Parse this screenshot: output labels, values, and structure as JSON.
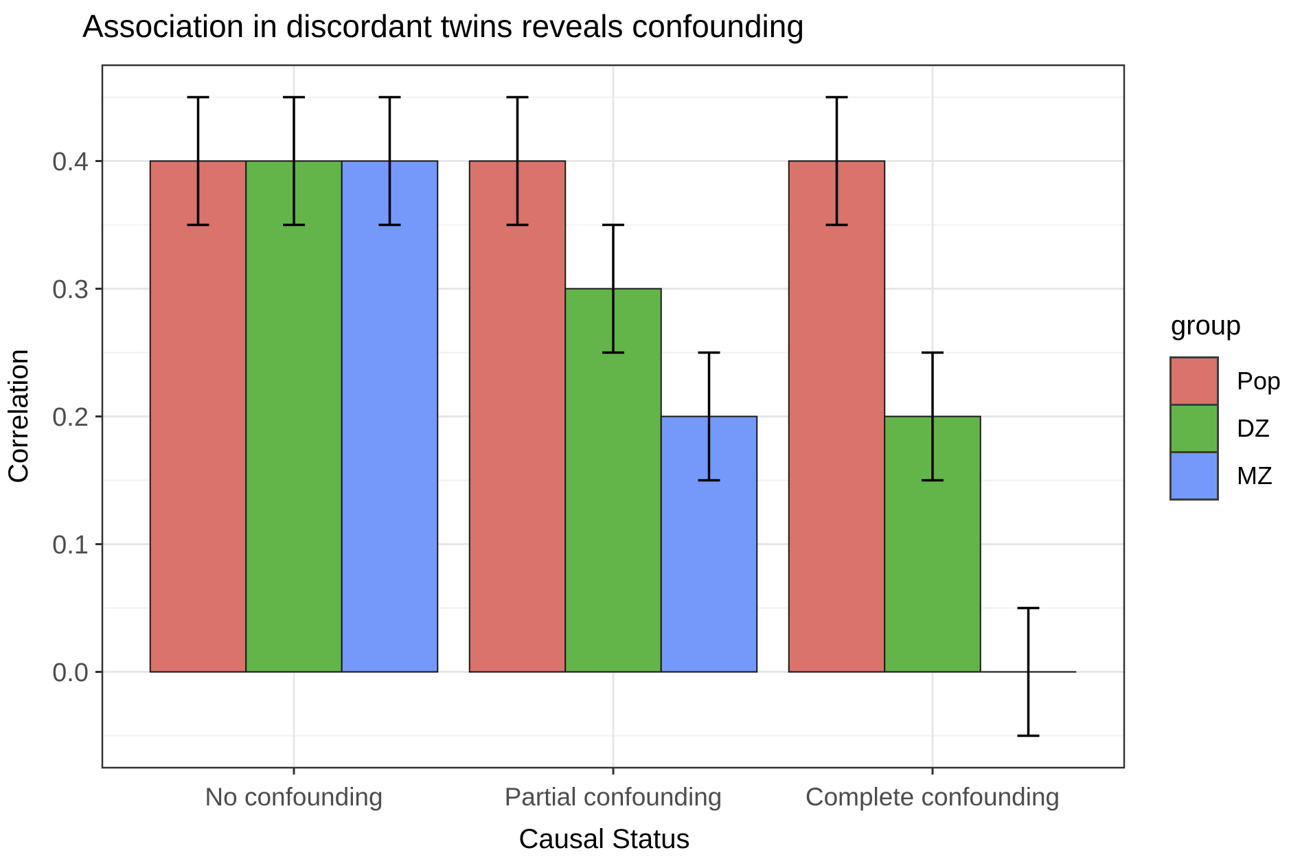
{
  "page": {
    "background": "#FFFFFF"
  },
  "chart_data": {
    "type": "bar",
    "title": "Association in discordant twins reveals confounding",
    "xlabel": "Causal Status",
    "ylabel": "Correlation",
    "categories": [
      "No confounding",
      "Partial confounding",
      "Complete confounding"
    ],
    "series": [
      {
        "name": "Pop",
        "color": "#D9736C",
        "values": [
          0.4,
          0.4,
          0.4
        ],
        "ci_low": [
          0.35,
          0.35,
          0.35
        ],
        "ci_high": [
          0.45,
          0.45,
          0.45
        ]
      },
      {
        "name": "DZ",
        "color": "#64B549",
        "values": [
          0.4,
          0.3,
          0.2
        ],
        "ci_low": [
          0.35,
          0.25,
          0.15
        ],
        "ci_high": [
          0.45,
          0.35,
          0.25
        ]
      },
      {
        "name": "MZ",
        "color": "#7599FA",
        "values": [
          0.4,
          0.2,
          0.0
        ],
        "ci_low": [
          0.35,
          0.15,
          -0.05
        ],
        "ci_high": [
          0.45,
          0.25,
          0.05
        ]
      }
    ],
    "y_ticks": [
      0.0,
      0.1,
      0.2,
      0.3,
      0.4
    ],
    "y_tick_labels": [
      "0.0",
      "0.1",
      "0.2",
      "0.3",
      "0.4"
    ],
    "y_minor_ticks": [
      -0.05,
      0.05,
      0.15,
      0.25,
      0.35,
      0.45
    ],
    "ylim": [
      -0.075,
      0.475
    ],
    "grid": true,
    "legend": {
      "title": "group",
      "position": "right"
    }
  },
  "style": {
    "panel_border": "#333333",
    "grid_major": "#E7E7E7",
    "grid_minor": "#F2F2F2",
    "axis_tick": "#333333",
    "tick_label": "#4D4D4D",
    "bar_outline": "#1A1A1A",
    "errorbar": "#000000"
  }
}
